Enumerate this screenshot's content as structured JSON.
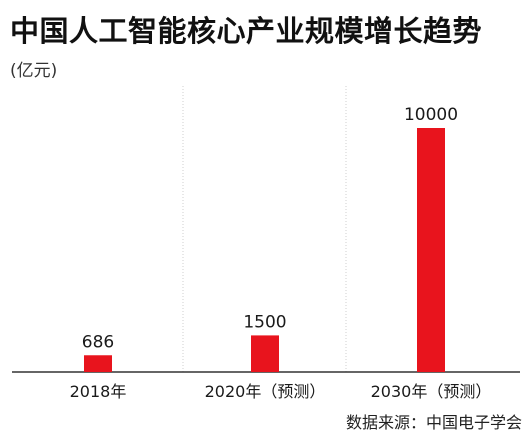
{
  "chart_data": {
    "type": "bar",
    "title": "中国人工智能核心产业规模增长趋势",
    "unit": "(亿元)",
    "categories": [
      "2018年",
      "2020年（预测）",
      "2030年（预测）"
    ],
    "values": [
      686,
      1500,
      10000
    ],
    "ylim": [
      0,
      10000
    ],
    "grid": false,
    "bar_color": "#e8141d",
    "source": "数据来源：中国电子学会"
  }
}
